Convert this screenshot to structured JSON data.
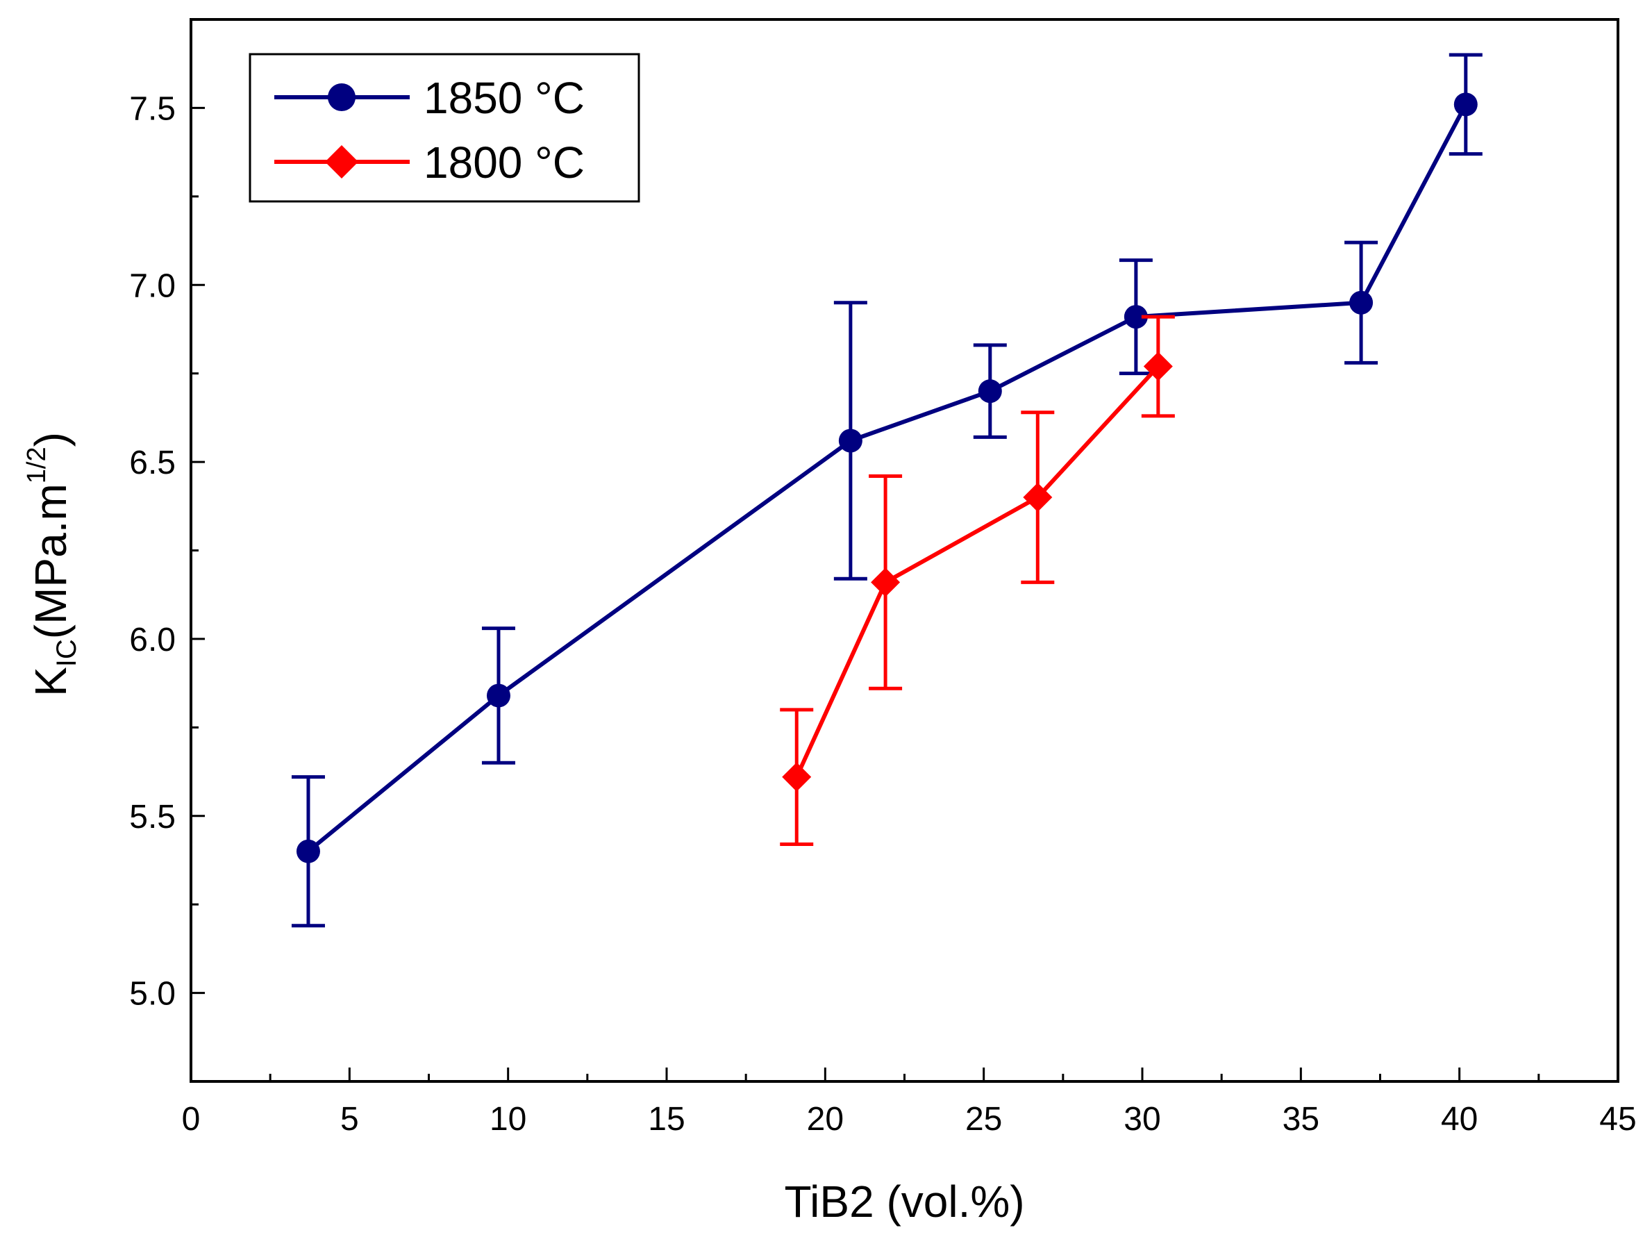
{
  "chart_data": {
    "type": "line",
    "title": "",
    "xlabel": "TiB2  (vol.%)",
    "ylabel": {
      "symbol": "K",
      "symbol_subscript": "IC",
      "unit_prefix": "(MPa.m",
      "unit_superscript": "1/2",
      "unit_suffix": ")"
    },
    "xlim": [
      0,
      45
    ],
    "ylim": [
      4.75,
      7.75
    ],
    "x_ticks": [
      0,
      5,
      10,
      15,
      20,
      25,
      30,
      35,
      40,
      45
    ],
    "x_tick_labels": [
      "0",
      "5",
      "10",
      "15",
      "20",
      "25",
      "30",
      "35",
      "40",
      "45"
    ],
    "y_ticks": [
      5.0,
      5.5,
      6.0,
      6.5,
      7.0,
      7.5
    ],
    "y_tick_labels": [
      "5.0",
      "5.5",
      "6.0",
      "6.5",
      "7.0",
      "7.5"
    ],
    "grid": false,
    "legend_position": "top-left",
    "series": [
      {
        "name": "1850 °C",
        "color": "#000080",
        "marker": "circle",
        "x": [
          3.7,
          9.7,
          20.8,
          25.2,
          29.8,
          36.9,
          40.2
        ],
        "y": [
          5.4,
          5.84,
          6.56,
          6.7,
          6.91,
          6.95,
          7.51
        ],
        "err_low": [
          5.19,
          5.65,
          6.17,
          6.57,
          6.75,
          6.78,
          7.37
        ],
        "err_high": [
          5.61,
          6.03,
          6.95,
          6.83,
          7.07,
          7.12,
          7.65
        ]
      },
      {
        "name": "1800 °C",
        "color": "#ff0000",
        "marker": "diamond",
        "x": [
          19.1,
          21.9,
          26.7,
          30.5
        ],
        "y": [
          5.61,
          6.16,
          6.4,
          6.77
        ],
        "err_low": [
          5.42,
          5.86,
          6.16,
          6.63
        ],
        "err_high": [
          5.8,
          6.46,
          6.64,
          6.91
        ]
      }
    ]
  }
}
